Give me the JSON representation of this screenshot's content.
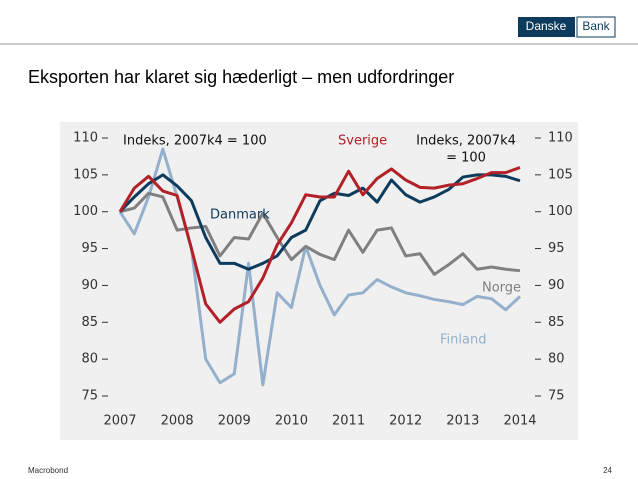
{
  "logo": [
    "Danske",
    "Bank"
  ],
  "title": "Eksporten har klaret sig hæderligt – men udfordringer",
  "footer": {
    "source": "Macrobond",
    "page": "24"
  },
  "chart_data": {
    "type": "line",
    "annotations": [
      "Indeks, 2007k4 = 100"
    ],
    "right_note": [
      "Indeks, 2007k4",
      "= 100"
    ],
    "x": [
      2007,
      2007.25,
      2007.5,
      2007.75,
      2008,
      2008.25,
      2008.5,
      2008.75,
      2009,
      2009.25,
      2009.5,
      2009.75,
      2010,
      2010.25,
      2010.5,
      2010.75,
      2011,
      2011.25,
      2011.5,
      2011.75,
      2012,
      2012.25,
      2012.5,
      2012.75,
      2013,
      2013.25,
      2013.5,
      2013.75,
      2014
    ],
    "xlim": [
      2007,
      2014
    ],
    "xticks": [
      2007,
      2008,
      2009,
      2010,
      2011,
      2012,
      2013,
      2014
    ],
    "ylim": [
      75,
      110
    ],
    "yticks": [
      75,
      80,
      85,
      90,
      95,
      100,
      105,
      110
    ],
    "y2lim": [
      75,
      110
    ],
    "y2ticks": [
      75,
      80,
      85,
      90,
      95,
      100,
      105,
      110
    ],
    "series": [
      {
        "name": "Finland",
        "color": "#94b0cc",
        "values": [
          100,
          97,
          102,
          108.5,
          102,
          95,
          80,
          76.8,
          78,
          93,
          76.5,
          89,
          87,
          95.3,
          90,
          86,
          88.7,
          89,
          90.8,
          89.8,
          89,
          88.6,
          88.1,
          87.8,
          87.4,
          88.5,
          88.2,
          86.7,
          88.5
        ]
      },
      {
        "name": "Norge",
        "color": "#808080",
        "values": [
          100,
          100.5,
          102.5,
          102,
          97.5,
          97.8,
          98,
          94,
          96.5,
          96.3,
          99.8,
          96.5,
          93.5,
          95.3,
          94.2,
          93.5,
          97.5,
          94.5,
          97.5,
          97.8,
          94,
          94.3,
          91.5,
          92.8,
          94.3,
          92.2,
          92.5,
          92.2,
          92
        ]
      },
      {
        "name": "Danmark",
        "color": "#0d3b5e",
        "values": [
          100,
          102,
          103.8,
          105,
          103.5,
          101.5,
          96.5,
          93,
          93,
          92.2,
          93,
          94,
          96.5,
          97.5,
          101.5,
          102.5,
          102.2,
          103.2,
          101.3,
          104.3,
          102.3,
          101.3,
          102,
          103,
          104.7,
          105,
          105,
          104.8,
          104.2
        ]
      },
      {
        "name": "Sverige",
        "color": "#b22028",
        "values": [
          100,
          103.2,
          104.8,
          102.8,
          102.2,
          95,
          87.5,
          85,
          86.8,
          87.8,
          91,
          95.5,
          98.5,
          102.3,
          102,
          102,
          105.5,
          102.3,
          104.5,
          105.8,
          104.3,
          103.3,
          103.2,
          103.6,
          103.8,
          104.5,
          105.3,
          105.3,
          106
        ]
      }
    ]
  }
}
